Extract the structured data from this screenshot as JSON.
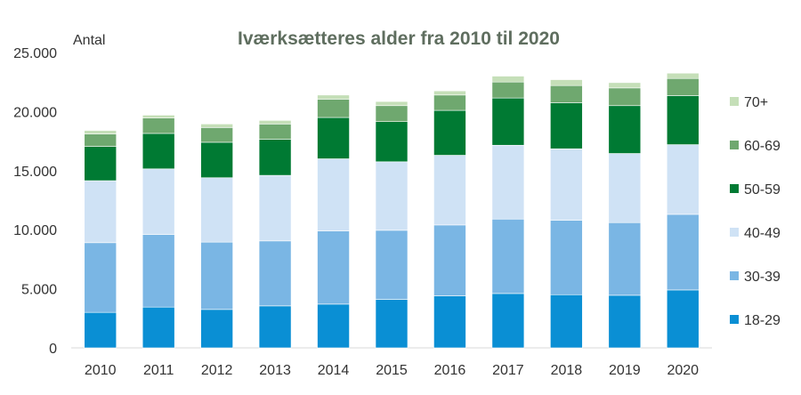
{
  "chart_data": {
    "type": "bar",
    "stacked": true,
    "title": "Iværksætteres alder fra 2010 til 2020",
    "ylabel": "Antal",
    "xlabel": "",
    "ylim": [
      0,
      25000
    ],
    "yticks": [
      0,
      5000,
      10000,
      15000,
      20000,
      25000
    ],
    "ytick_labels": [
      "0",
      "5.000",
      "10.000",
      "15.000",
      "20.000",
      "25.000"
    ],
    "grid": false,
    "legend_position": "right",
    "categories": [
      "2010",
      "2011",
      "2012",
      "2013",
      "2014",
      "2015",
      "2016",
      "2017",
      "2018",
      "2019",
      "2020"
    ],
    "series": [
      {
        "name": "18-29",
        "color": "#0a8fd4",
        "values": [
          3000,
          3450,
          3250,
          3550,
          3700,
          4100,
          4400,
          4600,
          4500,
          4450,
          4900
        ]
      },
      {
        "name": "30-39",
        "color": "#7ab6e4",
        "values": [
          5900,
          6150,
          5700,
          5500,
          6200,
          5850,
          6000,
          6300,
          6300,
          6150,
          6400
        ]
      },
      {
        "name": "40-49",
        "color": "#cfe2f5",
        "values": [
          5250,
          5550,
          5450,
          5550,
          6100,
          5800,
          5900,
          6250,
          6050,
          5850,
          5900
        ]
      },
      {
        "name": "50-59",
        "color": "#007a33",
        "values": [
          2900,
          3000,
          3000,
          3050,
          3500,
          3400,
          3800,
          4000,
          3900,
          4050,
          4150
        ]
      },
      {
        "name": "60-69",
        "color": "#6fa86f",
        "values": [
          1050,
          1300,
          1250,
          1300,
          1550,
          1350,
          1300,
          1350,
          1450,
          1500,
          1450
        ]
      },
      {
        "name": "70+",
        "color": "#c5dfb8",
        "values": [
          300,
          250,
          300,
          300,
          350,
          350,
          350,
          500,
          500,
          450,
          450
        ]
      }
    ]
  }
}
